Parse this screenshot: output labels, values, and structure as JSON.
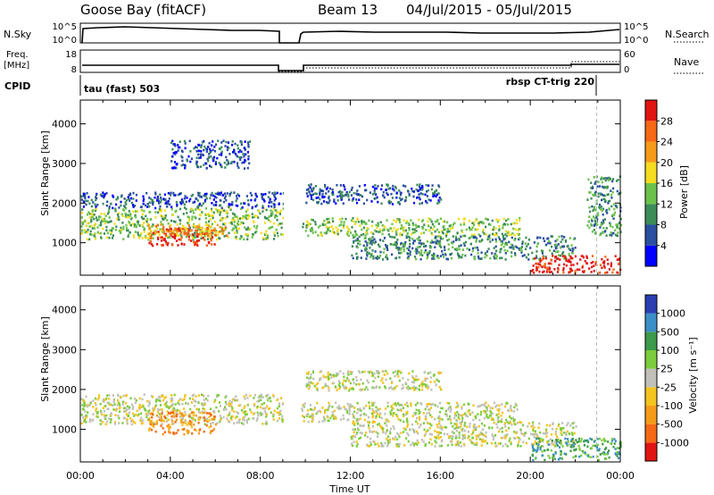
{
  "header": {
    "station": "Goose Bay (fitACF)",
    "beam": "Beam 13",
    "dates": "04/Jul/2015 - 05/Jul/2015"
  },
  "status_panel": {
    "nsky_label": "N.Sky",
    "nsky_ticks": [
      "10^5",
      "10^0"
    ],
    "nsearch_label": "N.Search",
    "nsearch_ticks": [
      "10^5",
      "10^0"
    ],
    "freq_label": "Freq.",
    "freq_unit": "[MHz]",
    "freq_ticks": [
      "18",
      "8"
    ],
    "nave_label": "Nave",
    "nave_ticks": [
      "60",
      "0"
    ],
    "cpid_label": "CPID",
    "cpid_left": "tau (fast) 503",
    "cpid_right": "rbsp CT-trig 220"
  },
  "chart_data": [
    {
      "type": "heatmap",
      "name": "power",
      "xlabel": "",
      "ylabel": "Slant Range [km]",
      "xlim_hours": [
        0,
        24
      ],
      "ylim_km": [
        180,
        4600
      ],
      "y_ticks": [
        "1000",
        "2000",
        "3000",
        "4000"
      ],
      "colorbar_label": "Power [dB]",
      "colorbar_ticks": [
        "4",
        "8",
        "12",
        "16",
        "20",
        "24",
        "28"
      ],
      "colors": [
        "#0000ff",
        "#2a4fa0",
        "#3c8c5a",
        "#6bc24a",
        "#f5dc1e",
        "#f59b19",
        "#f56914",
        "#e11414"
      ],
      "regions": [
        {
          "t": [
            0.0,
            9.0
          ],
          "r": [
            1100,
            1900
          ],
          "level": 3
        },
        {
          "t": [
            3.0,
            6.0
          ],
          "r": [
            950,
            1400
          ],
          "level": 7
        },
        {
          "t": [
            3.0,
            6.5
          ],
          "r": [
            1200,
            1500
          ],
          "level": 5
        },
        {
          "t": [
            0.0,
            9.0
          ],
          "r": [
            1900,
            2300
          ],
          "level": 1
        },
        {
          "t": [
            9.8,
            19.5
          ],
          "r": [
            1200,
            1650
          ],
          "level": 3
        },
        {
          "t": [
            10.0,
            16.0
          ],
          "r": [
            2000,
            2500
          ],
          "level": 1
        },
        {
          "t": [
            12.0,
            22.0
          ],
          "r": [
            600,
            1200
          ],
          "level": 2
        },
        {
          "t": [
            20.0,
            24.0
          ],
          "r": [
            250,
            700
          ],
          "level": 7
        },
        {
          "t": [
            22.5,
            24.0
          ],
          "r": [
            1200,
            2700
          ],
          "level": 2
        },
        {
          "t": [
            4.0,
            7.5
          ],
          "r": [
            2900,
            3600
          ],
          "level": 1
        }
      ]
    },
    {
      "type": "heatmap",
      "name": "velocity",
      "xlabel": "Time UT",
      "ylabel": "Slant Range [km]",
      "xlim_hours": [
        0,
        24
      ],
      "ylim_km": [
        180,
        4600
      ],
      "x_ticks": [
        "00:00",
        "04:00",
        "08:00",
        "12:00",
        "16:00",
        "20:00",
        "00:00"
      ],
      "y_ticks": [
        "1000",
        "2000",
        "3000",
        "4000"
      ],
      "colorbar_label": "Velocity [m s⁻¹]",
      "colorbar_ticks": [
        "1000",
        "500",
        "100",
        "25",
        "-25",
        "-100",
        "-500",
        "-1000"
      ],
      "colors": [
        "#2a3fb0",
        "#3b8fc8",
        "#3c9a4b",
        "#7ccd3c",
        "#c0c0b8",
        "#f5c31e",
        "#f59b19",
        "#f56914",
        "#e11414"
      ],
      "regions": [
        {
          "t": [
            0.0,
            9.0
          ],
          "r": [
            1150,
            1900
          ],
          "level": 4
        },
        {
          "t": [
            3.0,
            6.0
          ],
          "r": [
            900,
            1450
          ],
          "level": 6
        },
        {
          "t": [
            9.8,
            19.5
          ],
          "r": [
            1200,
            1700
          ],
          "level": 4
        },
        {
          "t": [
            12.0,
            22.0
          ],
          "r": [
            600,
            1200
          ],
          "level": 4
        },
        {
          "t": [
            20.0,
            24.0
          ],
          "r": [
            250,
            800
          ],
          "level": 2
        },
        {
          "t": [
            10.0,
            16.0
          ],
          "r": [
            2000,
            2500
          ],
          "level": 4
        }
      ]
    }
  ]
}
